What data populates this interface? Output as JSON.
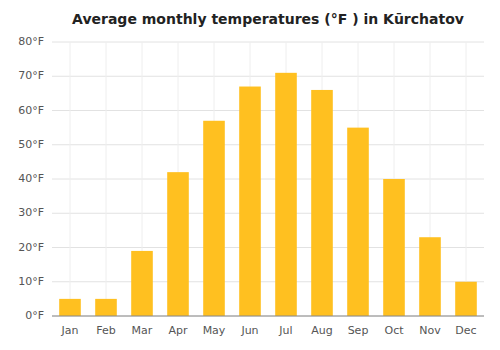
{
  "chart_data": {
    "type": "bar",
    "title": "Average monthly temperatures (°F ) in Kūrchatov",
    "categories": [
      "Jan",
      "Feb",
      "Mar",
      "Apr",
      "May",
      "Jun",
      "Jul",
      "Aug",
      "Sep",
      "Oct",
      "Nov",
      "Dec"
    ],
    "values": [
      5,
      5,
      19,
      42,
      57,
      67,
      71,
      66,
      55,
      40,
      23,
      10
    ],
    "color": "#FFC020",
    "ylim": [
      0,
      80
    ],
    "yticks": [
      {
        "value": 0,
        "label": "0°F"
      },
      {
        "value": 10,
        "label": "10°F"
      },
      {
        "value": 20,
        "label": "20°F"
      },
      {
        "value": 30,
        "label": "30°F"
      },
      {
        "value": 40,
        "label": "40°F"
      },
      {
        "value": 50,
        "label": "50°F"
      },
      {
        "value": 60,
        "label": "60°F"
      },
      {
        "value": 70,
        "label": "70°F"
      },
      {
        "value": 80,
        "label": "80°F"
      }
    ],
    "grid": true
  }
}
